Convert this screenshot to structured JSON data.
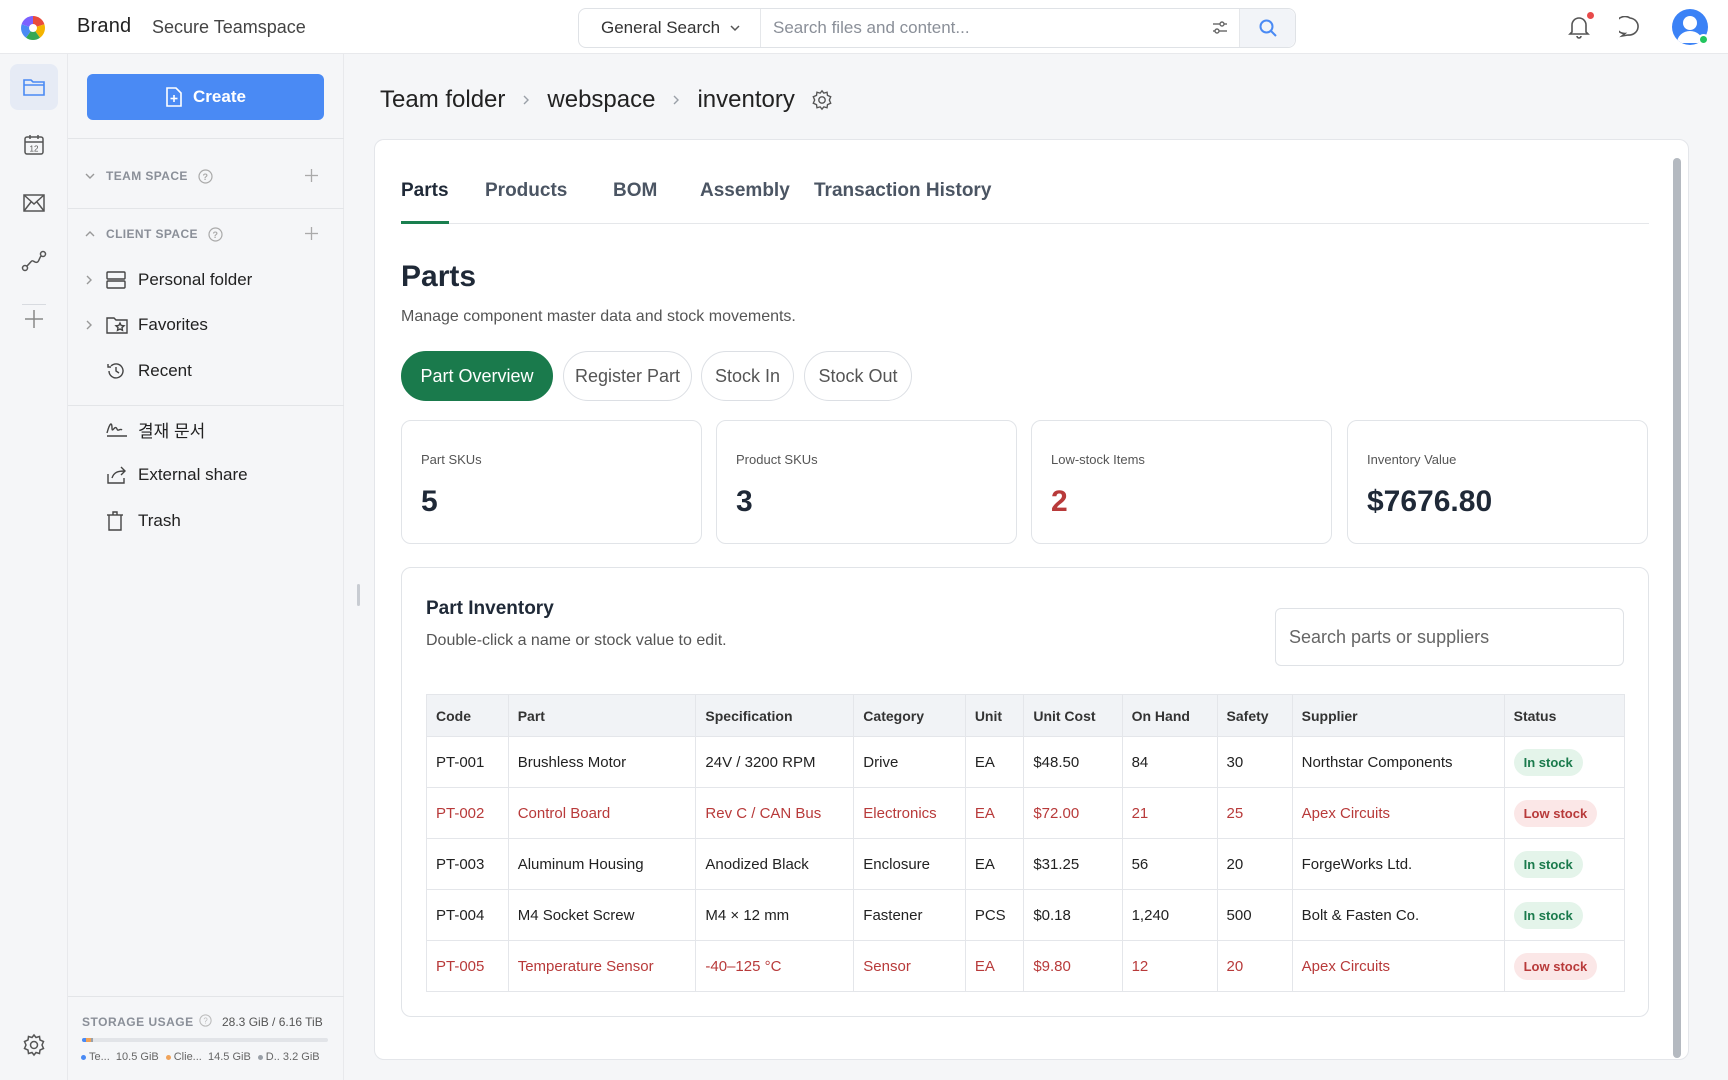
{
  "topbar": {
    "brand": "Brand",
    "workspace": "Secure Teamspace",
    "search_scope": "General Search",
    "search_placeholder": "Search files and content..."
  },
  "sidebar": {
    "create_label": "Create",
    "team_space_label": "TEAM SPACE",
    "client_space_label": "CLIENT SPACE",
    "items": [
      {
        "label": "Personal folder"
      },
      {
        "label": "Favorites"
      },
      {
        "label": "Recent"
      },
      {
        "label": "결재 문서"
      },
      {
        "label": "External share"
      },
      {
        "label": "Trash"
      }
    ],
    "storage": {
      "title": "STORAGE USAGE",
      "total": "28.3 GiB / 6.16 TiB",
      "segments": [
        {
          "label": "Te...",
          "size": "10.5 GiB",
          "color": "#4a8af4"
        },
        {
          "label": "Clie...",
          "size": "14.5 GiB",
          "color": "#f0a35a"
        },
        {
          "label": "D..",
          "size": "3.2 GiB",
          "color": "#9aa0a8"
        }
      ]
    }
  },
  "breadcrumb": [
    "Team folder",
    "webspace",
    "inventory"
  ],
  "tabs": [
    "Parts",
    "Products",
    "BOM",
    "Assembly",
    "Transaction History"
  ],
  "page": {
    "title": "Parts",
    "subtitle": "Manage component master data and stock movements."
  },
  "actions": [
    "Part Overview",
    "Register Part",
    "Stock In",
    "Stock Out"
  ],
  "stats": [
    {
      "label": "Part SKUs",
      "value": "5"
    },
    {
      "label": "Product SKUs",
      "value": "3"
    },
    {
      "label": "Low-stock Items",
      "value": "2"
    },
    {
      "label": "Inventory Value",
      "value": "$7676.80"
    }
  ],
  "inventory": {
    "title": "Part Inventory",
    "subtitle": "Double-click a name or stock value to edit.",
    "search_placeholder": "Search parts or suppliers",
    "columns": [
      "Code",
      "Part",
      "Specification",
      "Category",
      "Unit",
      "Unit Cost",
      "On Hand",
      "Safety",
      "Supplier",
      "Status"
    ],
    "rows": [
      {
        "code": "PT-001",
        "part": "Brushless Motor",
        "spec": "24V / 3200 RPM",
        "category": "Drive",
        "unit": "EA",
        "cost": "$48.50",
        "on_hand": "84",
        "safety": "30",
        "supplier": "Northstar Components",
        "status": "In stock",
        "low": false
      },
      {
        "code": "PT-002",
        "part": "Control Board",
        "spec": "Rev C / CAN Bus",
        "category": "Electronics",
        "unit": "EA",
        "cost": "$72.00",
        "on_hand": "21",
        "safety": "25",
        "supplier": "Apex Circuits",
        "status": "Low stock",
        "low": true
      },
      {
        "code": "PT-003",
        "part": "Aluminum Housing",
        "spec": "Anodized Black",
        "category": "Enclosure",
        "unit": "EA",
        "cost": "$31.25",
        "on_hand": "56",
        "safety": "20",
        "supplier": "ForgeWorks Ltd.",
        "status": "In stock",
        "low": false
      },
      {
        "code": "PT-004",
        "part": "M4 Socket Screw",
        "spec": "M4 × 12 mm",
        "category": "Fastener",
        "unit": "PCS",
        "cost": "$0.18",
        "on_hand": "1,240",
        "safety": "500",
        "supplier": "Bolt & Fasten Co.",
        "status": "In stock",
        "low": false
      },
      {
        "code": "PT-005",
        "part": "Temperature Sensor",
        "spec": "-40–125 °C",
        "category": "Sensor",
        "unit": "EA",
        "cost": "$9.80",
        "on_hand": "12",
        "safety": "20",
        "supplier": "Apex Circuits",
        "status": "Low stock",
        "low": true
      }
    ]
  }
}
